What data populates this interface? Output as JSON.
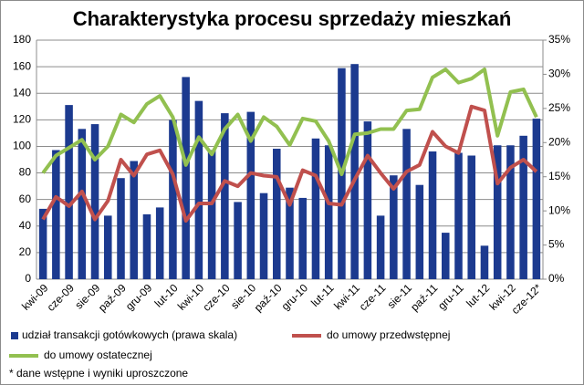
{
  "chart_data": {
    "type": "bar-line",
    "title": "Charakterystyka procesu sprzedaży mieszkań",
    "note": "* dane wstępne i wyniki uproszczone",
    "categories": [
      "kwi-09",
      null,
      "cze-09",
      null,
      "sie-09",
      null,
      "paź-09",
      null,
      "gru-09",
      null,
      "lut-10",
      null,
      "kwi-10",
      null,
      "cze-10",
      null,
      "sie-10",
      null,
      "paź-10",
      null,
      "gru-10",
      null,
      "lut-11",
      null,
      "kwi-11",
      null,
      "cze-11",
      null,
      "sie-11",
      null,
      "paź-11",
      null,
      "gru-11",
      null,
      "lut-12",
      null,
      "kwi-12",
      null,
      "cze-12*"
    ],
    "ylim": [
      0,
      180
    ],
    "yticks": [
      0,
      20,
      40,
      60,
      80,
      100,
      120,
      140,
      160,
      180
    ],
    "y2lim": [
      0,
      35
    ],
    "y2ticks": [
      {
        "value": 0,
        "label": "0%"
      },
      {
        "value": 5,
        "label": "5%"
      },
      {
        "value": 10,
        "label": "10%"
      },
      {
        "value": 15,
        "label": "15%"
      },
      {
        "value": 20,
        "label": "20%"
      },
      {
        "value": 25,
        "label": "25%"
      },
      {
        "value": 30,
        "label": "30%"
      },
      {
        "value": 35,
        "label": "35%"
      }
    ],
    "grid": true,
    "series": [
      {
        "name": "udział transakcji gotówkowych (prawa skala)",
        "kind": "bar",
        "axis": "y2",
        "color": "#1c3a8f",
        "values": [
          10.3,
          18.9,
          25.5,
          22.0,
          22.7,
          9.3,
          14.8,
          17.3,
          9.5,
          10.5,
          23.3,
          29.6,
          26.1,
          18.9,
          24.3,
          11.3,
          24.5,
          12.6,
          19.1,
          13.4,
          11.9,
          20.6,
          19.6,
          30.9,
          31.5,
          23.1,
          9.3,
          15.2,
          22.0,
          13.8,
          18.7,
          6.8,
          18.5,
          18.1,
          4.9,
          19.6,
          19.6,
          21.0,
          23.5
        ]
      },
      {
        "name": "do umowy przedwstępnej",
        "kind": "line",
        "color": "#c0504d",
        "values": [
          45,
          62,
          55,
          66,
          45,
          59,
          90,
          78,
          94,
          97,
          79,
          44,
          57,
          57,
          74,
          70,
          80,
          78,
          77,
          56,
          82,
          78,
          57,
          56,
          75,
          93,
          80,
          68,
          81,
          86,
          111,
          100,
          95,
          130,
          127,
          72,
          84,
          90,
          81
        ]
      },
      {
        "name": "do umowy ostatecznej",
        "kind": "line",
        "color": "#92c050",
        "values": [
          80,
          93,
          99,
          105,
          90,
          100,
          124,
          118,
          132,
          138,
          122,
          86,
          107,
          94,
          113,
          124,
          104,
          122,
          115,
          101,
          121,
          119,
          104,
          79,
          109,
          110,
          113,
          113,
          127,
          128,
          152,
          158,
          148,
          151,
          158,
          108,
          141,
          143,
          122
        ]
      }
    ]
  }
}
